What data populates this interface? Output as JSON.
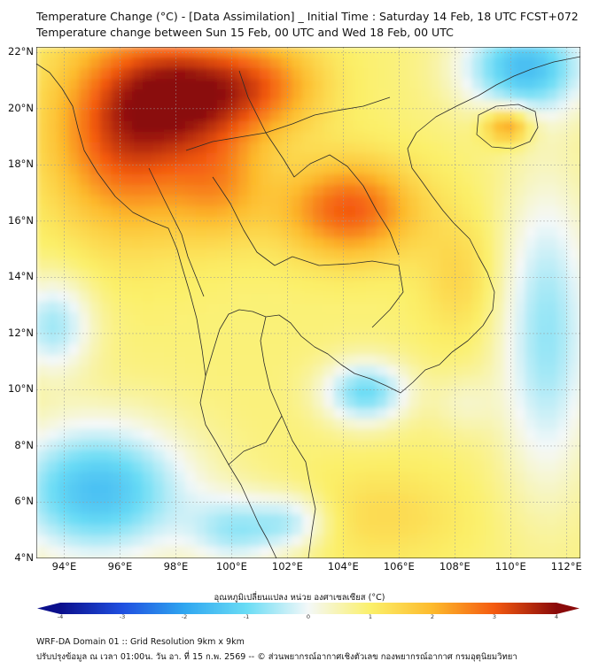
{
  "header": {
    "title_line1": "Temperature Change (°C) - [Data Assimilation] _ Initial Time : Saturday 14 Feb, 18 UTC FCST+072",
    "title_line2": "Temperature change between Sun 15 Feb, 00 UTC and Wed 18 Feb, 00 UTC"
  },
  "map": {
    "lat_ticks": [
      "22°N",
      "20°N",
      "18°N",
      "16°N",
      "14°N",
      "12°N",
      "10°N",
      "8°N",
      "6°N",
      "4°N"
    ],
    "lon_ticks": [
      "94°E",
      "96°E",
      "98°E",
      "100°E",
      "102°E",
      "104°E",
      "106°E",
      "108°E",
      "110°E",
      "112°E"
    ],
    "lat_range": [
      4,
      22.2
    ],
    "lon_range": [
      93,
      112.5
    ],
    "gridlines": true
  },
  "colorbar": {
    "label": "อุณหภูมิเปลี่ยนแปลง หน่วย องศาเซลเซียส (°C)",
    "ticks": [
      "-4",
      "-3",
      "-2",
      "-1",
      "0",
      "1",
      "2",
      "3",
      "4"
    ],
    "range": [
      -4,
      4
    ],
    "colors": [
      "#0b0f8c",
      "#1f4fe0",
      "#2fa6f0",
      "#69dcf5",
      "#f4f8f8",
      "#fbf06a",
      "#fdba2c",
      "#f45a10",
      "#8a0a0a"
    ]
  },
  "footer": {
    "line1": "WRF-DA Domain 01 :: Grid Resolution 9km x 9km",
    "line2": "ปรับปรุงข้อมูล ณ เวลา 01:00น. วัน อา. ที่ 15 ก.พ. 2569 -- © ส่วนพยากรณ์อากาศเชิงตัวเลข กองพยากรณ์อากาศ กรมอุตุนิยมวิทยา"
  },
  "field": {
    "base": 0.9,
    "blobs": [
      {
        "lon": 96.3,
        "lat": 19.2,
        "amp": 2.4,
        "sx": 1.9,
        "sy": 2.4
      },
      {
        "lon": 98.4,
        "lat": 20.6,
        "amp": 1.9,
        "sx": 1.7,
        "sy": 1.3
      },
      {
        "lon": 101.0,
        "lat": 20.8,
        "amp": 1.6,
        "sx": 1.6,
        "sy": 1.2
      },
      {
        "lon": 99.6,
        "lat": 17.4,
        "amp": 1.2,
        "sx": 1.2,
        "sy": 1.4
      },
      {
        "lon": 104.2,
        "lat": 16.4,
        "amp": 2.1,
        "sx": 1.7,
        "sy": 1.2
      },
      {
        "lon": 109.9,
        "lat": 19.4,
        "amp": 1.8,
        "sx": 0.6,
        "sy": 0.45
      },
      {
        "lon": 108.2,
        "lat": 14.0,
        "amp": 0.6,
        "sx": 1.0,
        "sy": 1.5
      },
      {
        "lon": 110.5,
        "lat": 21.5,
        "amp": -2.4,
        "sx": 1.6,
        "sy": 1.2
      },
      {
        "lon": 104.8,
        "lat": 9.9,
        "amp": -1.9,
        "sx": 1.1,
        "sy": 0.8
      },
      {
        "lon": 95.2,
        "lat": 6.4,
        "amp": -2.4,
        "sx": 2.3,
        "sy": 1.7
      },
      {
        "lon": 93.6,
        "lat": 12.3,
        "amp": -1.5,
        "sx": 1.0,
        "sy": 1.2
      },
      {
        "lon": 111.3,
        "lat": 12.0,
        "amp": -1.6,
        "sx": 1.2,
        "sy": 3.8
      },
      {
        "lon": 100.2,
        "lat": 5.0,
        "amp": -1.4,
        "sx": 1.2,
        "sy": 0.9
      },
      {
        "lon": 102.2,
        "lat": 5.3,
        "amp": -1.1,
        "sx": 0.9,
        "sy": 0.7
      },
      {
        "lon": 105.5,
        "lat": 5.5,
        "amp": 0.5,
        "sx": 2.0,
        "sy": 1.2
      },
      {
        "lon": 108.3,
        "lat": 9.5,
        "amp": -0.5,
        "sx": 0.8,
        "sy": 0.8
      }
    ]
  }
}
